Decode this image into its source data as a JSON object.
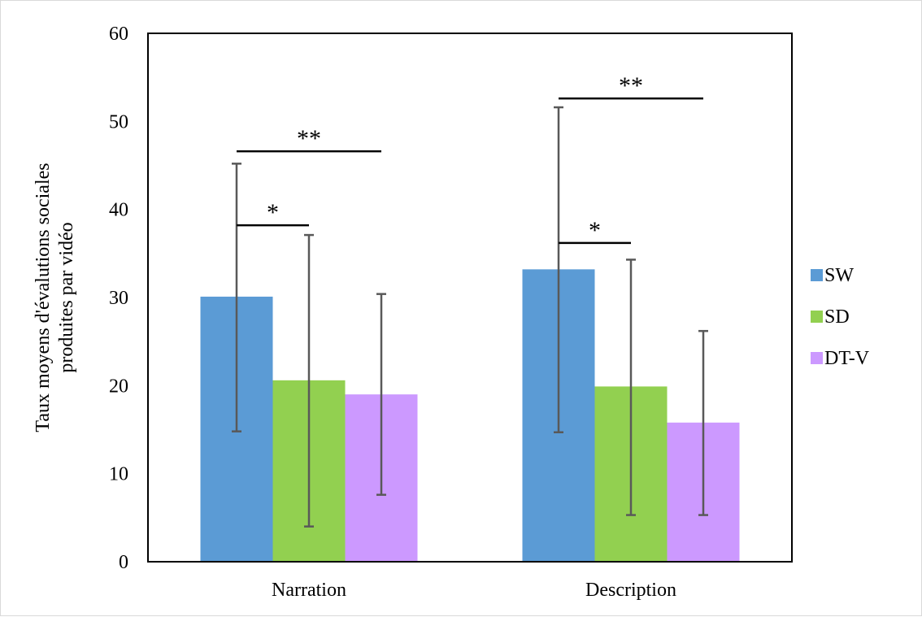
{
  "chart_data": {
    "type": "bar",
    "title": "",
    "xlabel": "",
    "ylabel_lines": [
      "Taux moyens d'évalutions sociales",
      "produites par vidéo"
    ],
    "ylim": [
      0,
      60
    ],
    "yticks": [
      0,
      10,
      20,
      30,
      40,
      50,
      60
    ],
    "categories": [
      "Narration",
      "Description"
    ],
    "series": [
      {
        "name": "SW",
        "values": [
          30.1,
          33.2
        ],
        "error_low": [
          14.8,
          14.7
        ],
        "error_high": [
          45.2,
          51.6
        ]
      },
      {
        "name": "SD",
        "values": [
          20.6,
          19.9
        ],
        "error_low": [
          4.0,
          5.3
        ],
        "error_high": [
          37.1,
          34.3
        ]
      },
      {
        "name": "DT-V",
        "values": [
          19.0,
          15.8
        ],
        "error_low": [
          7.6,
          5.3
        ],
        "error_high": [
          30.4,
          26.2
        ]
      }
    ],
    "significance": [
      {
        "category": 0,
        "from_series": 0,
        "to_series": 1,
        "level": 38.2,
        "label": "*"
      },
      {
        "category": 0,
        "from_series": 0,
        "to_series": 2,
        "level": 46.6,
        "label": "**"
      },
      {
        "category": 1,
        "from_series": 0,
        "to_series": 1,
        "level": 36.2,
        "label": "*"
      },
      {
        "category": 1,
        "from_series": 0,
        "to_series": 2,
        "level": 52.6,
        "label": "**"
      }
    ],
    "grid": false,
    "legend_position": "right",
    "colors": {
      "SW": "#5b9bd5",
      "SD": "#92d050",
      "DT-V": "#cc99ff",
      "error_bar": "#595959"
    }
  }
}
